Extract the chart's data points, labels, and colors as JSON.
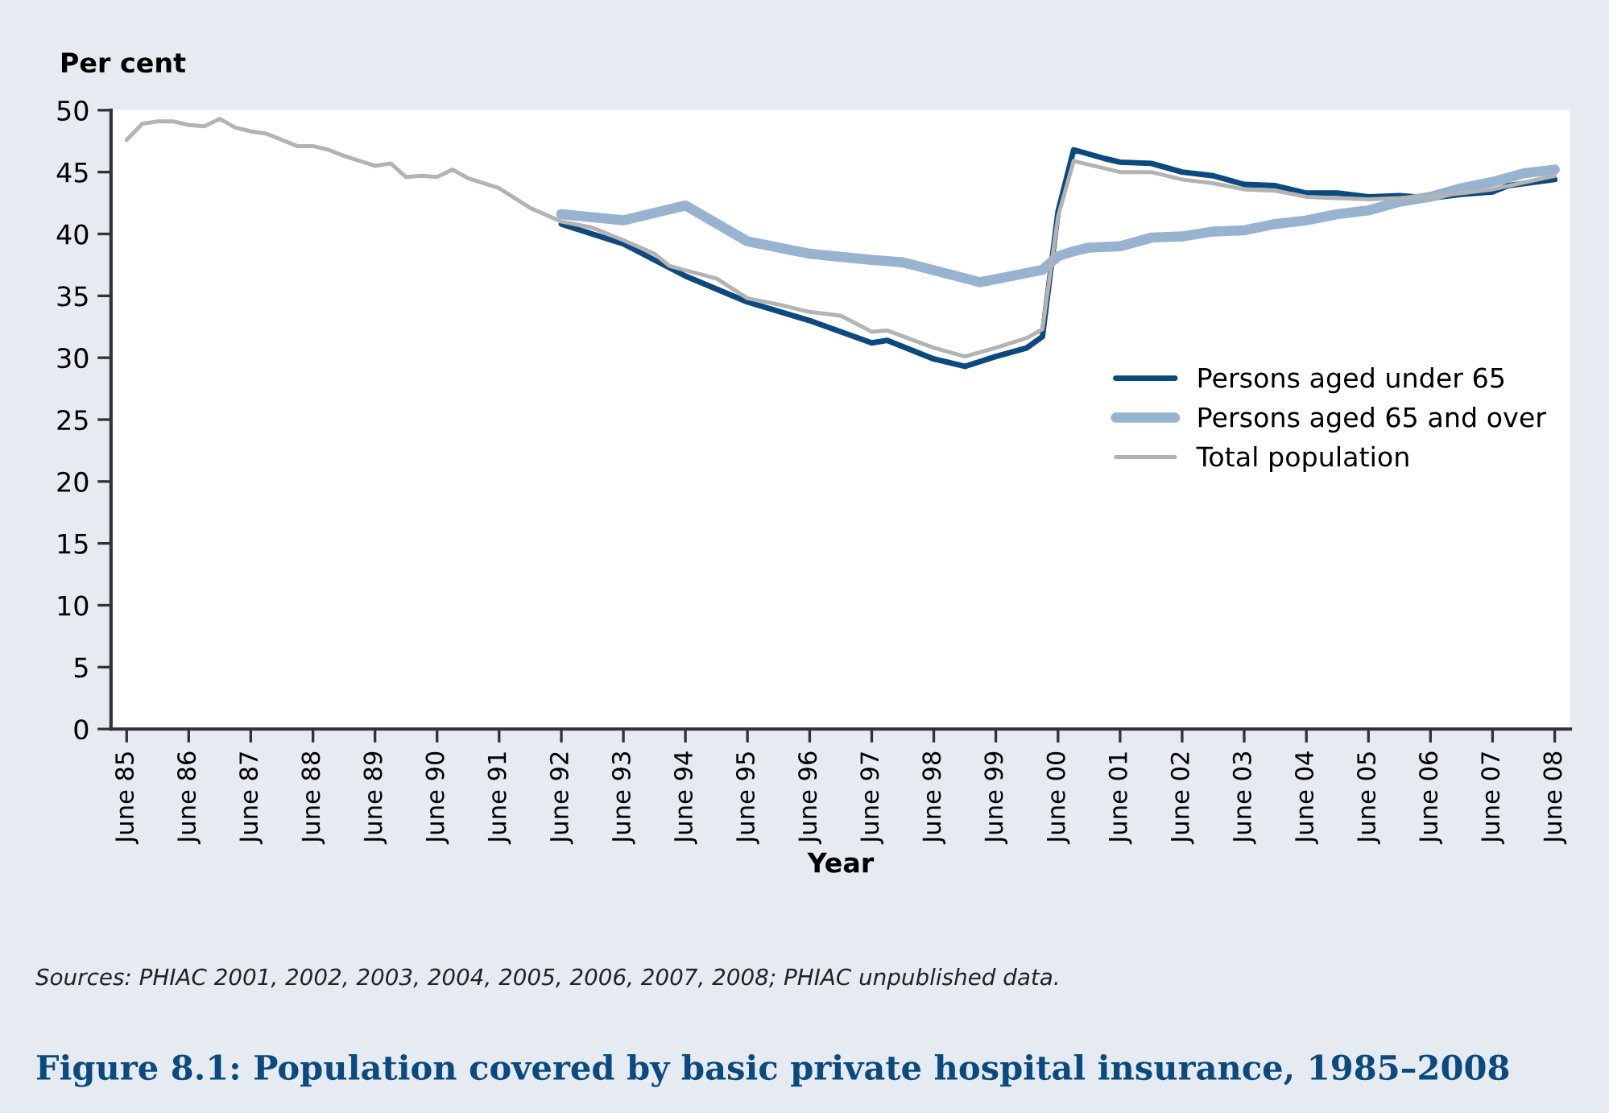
{
  "chart_data": {
    "type": "line",
    "title": "Figure 8.1: Population covered by basic private hospital insurance, 1985–2008",
    "xlabel": "Year",
    "ylabel": "Per cent",
    "annotations": [
      "Sources: PHIAC 2001, 2002, 2003, 2004, 2005, 2006, 2007, 2008; PHIAC unpublished data."
    ],
    "series": [
      {
        "name": "Persons aged under 65",
        "color": "#0b4a7e",
        "x": [
          "1992-06",
          "1993-06",
          "1994-06",
          "1995-06",
          "1996-06",
          "1997-06",
          "1997-09",
          "1998-06",
          "1998-12",
          "1999-06",
          "1999-12",
          "2000-03",
          "2000-06",
          "2000-09",
          "2001-03",
          "2001-06",
          "2001-12",
          "2002-06",
          "2002-12",
          "2003-06",
          "2003-12",
          "2004-06",
          "2004-12",
          "2005-06",
          "2005-12",
          "2006-06",
          "2006-12",
          "2007-06",
          "2007-09",
          "2008-06"
        ],
        "values": [
          40.8,
          39.2,
          36.6,
          34.5,
          33.0,
          31.2,
          31.4,
          29.9,
          29.3,
          30.1,
          30.8,
          31.7,
          41.8,
          46.8,
          46.1,
          45.8,
          45.7,
          45.0,
          44.7,
          44.0,
          43.9,
          43.3,
          43.3,
          43.0,
          43.1,
          42.9,
          43.2,
          43.4,
          43.9,
          44.4
        ]
      },
      {
        "name": "Persons aged 65 and over",
        "color": "#97b3cf",
        "x": [
          "1992-06",
          "1993-06",
          "1994-06",
          "1995-06",
          "1996-06",
          "1997-06",
          "1997-12",
          "1998-03",
          "1999-03",
          "2000-03",
          "2000-06",
          "2000-09",
          "2000-12",
          "2001-06",
          "2001-12",
          "2002-06",
          "2002-12",
          "2003-06",
          "2003-12",
          "2004-06",
          "2004-12",
          "2005-06",
          "2005-12",
          "2006-06",
          "2006-12",
          "2007-06",
          "2007-12",
          "2008-06"
        ],
        "values": [
          41.6,
          41.1,
          42.3,
          39.4,
          38.4,
          37.9,
          37.7,
          37.4,
          36.1,
          37.1,
          38.2,
          38.6,
          38.9,
          39.0,
          39.7,
          39.8,
          40.2,
          40.3,
          40.8,
          41.1,
          41.6,
          41.9,
          42.6,
          43.0,
          43.7,
          44.2,
          44.9,
          45.2
        ]
      },
      {
        "name": "Total population",
        "color": "#b3b3b3",
        "x": [
          "1985-06",
          "1985-09",
          "1985-12",
          "1986-03",
          "1986-06",
          "1986-09",
          "1986-12",
          "1987-03",
          "1987-06",
          "1987-09",
          "1988-03",
          "1988-06",
          "1988-09",
          "1988-12",
          "1989-06",
          "1989-09",
          "1989-12",
          "1990-03",
          "1990-06",
          "1990-09",
          "1990-12",
          "1991-06",
          "1991-12",
          "1992-06",
          "1992-12",
          "1993-06",
          "1993-12",
          "1994-03",
          "1994-12",
          "1995-06",
          "1995-12",
          "1996-06",
          "1996-12",
          "1997-06",
          "1997-09",
          "1998-06",
          "1998-12",
          "1999-06",
          "1999-12",
          "2000-03",
          "2000-06",
          "2000-09",
          "2001-06",
          "2001-12",
          "2002-06",
          "2002-12",
          "2003-06",
          "2003-12",
          "2004-06",
          "2005-06",
          "2006-06",
          "2007-06",
          "2008-06"
        ],
        "values": [
          47.6,
          48.9,
          49.1,
          49.1,
          48.8,
          48.7,
          49.3,
          48.6,
          48.3,
          48.1,
          47.1,
          47.1,
          46.8,
          46.3,
          45.5,
          45.7,
          44.6,
          44.7,
          44.6,
          45.2,
          44.5,
          43.7,
          42.1,
          41.0,
          40.5,
          39.5,
          38.4,
          37.4,
          36.4,
          34.8,
          34.3,
          33.7,
          33.4,
          32.1,
          32.2,
          30.8,
          30.1,
          30.8,
          31.6,
          32.3,
          41.4,
          45.9,
          45.0,
          45.0,
          44.4,
          44.1,
          43.6,
          43.5,
          43.0,
          42.8,
          43.0,
          43.6,
          44.7
        ]
      }
    ],
    "xlim": [
      "1985-03",
      "2008-09"
    ],
    "ylim": [
      0,
      50
    ],
    "xticks": [
      {
        "value": "1985-06",
        "label": "June 85"
      },
      {
        "value": "1986-06",
        "label": "June 86"
      },
      {
        "value": "1987-06",
        "label": "June 87"
      },
      {
        "value": "1988-06",
        "label": "June 88"
      },
      {
        "value": "1989-06",
        "label": "June 89"
      },
      {
        "value": "1990-06",
        "label": "June 90"
      },
      {
        "value": "1991-06",
        "label": "June 91"
      },
      {
        "value": "1992-06",
        "label": "June 92"
      },
      {
        "value": "1993-06",
        "label": "June 93"
      },
      {
        "value": "1994-06",
        "label": "June 94"
      },
      {
        "value": "1995-06",
        "label": "June 95"
      },
      {
        "value": "1996-06",
        "label": "June 96"
      },
      {
        "value": "1997-06",
        "label": "June 97"
      },
      {
        "value": "1998-06",
        "label": "June 98"
      },
      {
        "value": "1999-06",
        "label": "June 99"
      },
      {
        "value": "2000-06",
        "label": "June 00"
      },
      {
        "value": "2001-06",
        "label": "June 01"
      },
      {
        "value": "2002-06",
        "label": "June 02"
      },
      {
        "value": "2003-06",
        "label": "June 03"
      },
      {
        "value": "2004-06",
        "label": "June 04"
      },
      {
        "value": "2005-06",
        "label": "June 05"
      },
      {
        "value": "2006-06",
        "label": "June 06"
      },
      {
        "value": "2007-06",
        "label": "June 07"
      },
      {
        "value": "2008-06",
        "label": "June 08"
      }
    ],
    "yticks": [
      0,
      5,
      10,
      15,
      20,
      25,
      30,
      35,
      40,
      45,
      50
    ],
    "grid": false,
    "legend": "center right"
  }
}
